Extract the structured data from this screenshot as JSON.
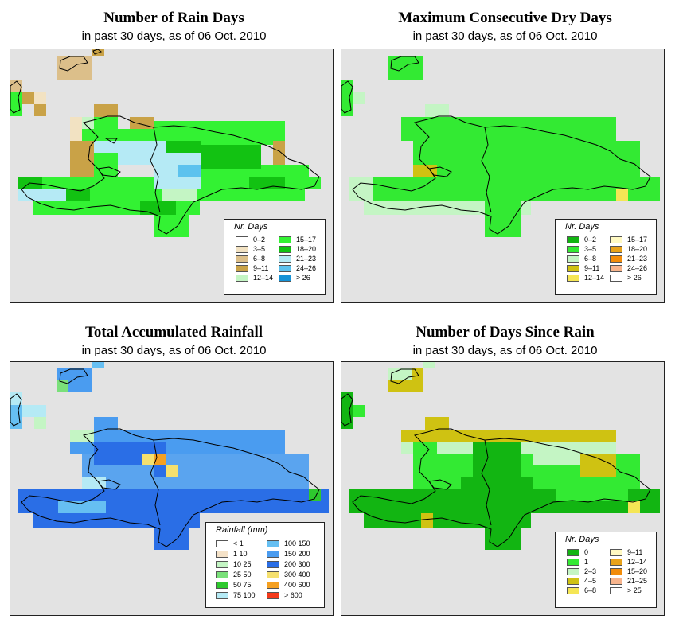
{
  "panels": [
    {
      "title": "Number of Rain Days",
      "subtitle": "in past 30 days, as of  06 Oct. 2010",
      "legend": {
        "title": "Nr. Days",
        "items": [
          {
            "label": "0–2",
            "color": "#ffffff"
          },
          {
            "label": "3–5",
            "color": "#f2e2c2"
          },
          {
            "label": "6–8",
            "color": "#dcbf8a"
          },
          {
            "label": "9–11",
            "color": "#c9a247"
          },
          {
            "label": "12–14",
            "color": "#c4f5c4"
          },
          {
            "label": "15–17",
            "color": "#33f233"
          },
          {
            "label": "18–20",
            "color": "#12c212"
          },
          {
            "label": "21–23",
            "color": "#b5eaf5"
          },
          {
            "label": "24–26",
            "color": "#5cc2ee"
          },
          {
            "label": "> 26",
            "color": "#1592d6"
          }
        ]
      }
    },
    {
      "title": "Maximum Consecutive Dry Days",
      "subtitle": "in past 30 days, as of  06 Oct. 2010",
      "legend": {
        "title": "Nr. Days",
        "items": [
          {
            "label": "0–2",
            "color": "#12b512"
          },
          {
            "label": "3–5",
            "color": "#33ea33"
          },
          {
            "label": "6–8",
            "color": "#c4f5c4"
          },
          {
            "label": "9–11",
            "color": "#cfc212"
          },
          {
            "label": "12–14",
            "color": "#f5e655"
          },
          {
            "label": "15–17",
            "color": "#fff9c2"
          },
          {
            "label": "18–20",
            "color": "#e8a21a"
          },
          {
            "label": "21–23",
            "color": "#f28c0a"
          },
          {
            "label": "24–26",
            "color": "#f7b48c"
          },
          {
            "label": "> 26",
            "color": "#ffffff"
          }
        ]
      }
    },
    {
      "title": "Total Accumulated Rainfall",
      "subtitle": "in past 30 days, as of  06 Oct. 2010",
      "legend": {
        "title": "Rainfall (mm)",
        "items": [
          {
            "label": "< 1",
            "color": "#ffffff"
          },
          {
            "label": "1    10",
            "color": "#f5e2c8"
          },
          {
            "label": "10    25",
            "color": "#c4f5c4"
          },
          {
            "label": "25    50",
            "color": "#7ae07a"
          },
          {
            "label": "50    75",
            "color": "#2ec92e"
          },
          {
            "label": "75    100",
            "color": "#b5eaf5"
          },
          {
            "label": "100    150",
            "color": "#66bff2"
          },
          {
            "label": "150    200",
            "color": "#4a9cf0"
          },
          {
            "label": "200    300",
            "color": "#2a6ee6"
          },
          {
            "label": "300    400",
            "color": "#f5e06e"
          },
          {
            "label": "400    600",
            "color": "#f5a020"
          },
          {
            "label": "> 600",
            "color": "#f53a1a"
          }
        ]
      }
    },
    {
      "title": "Number of Days Since Rain",
      "subtitle": "in past 30 days, as of  06 Oct. 2010",
      "legend": {
        "title": "Nr. Days",
        "items": [
          {
            "label": "0",
            "color": "#12b512"
          },
          {
            "label": "1",
            "color": "#33ea33"
          },
          {
            "label": "2–3",
            "color": "#c4f5c4"
          },
          {
            "label": "4–5",
            "color": "#cfc212"
          },
          {
            "label": "6–8",
            "color": "#f5e655"
          },
          {
            "label": "9–11",
            "color": "#fff9c2"
          },
          {
            "label": "12–14",
            "color": "#e8a21a"
          },
          {
            "label": "15–20",
            "color": "#f28c0a"
          },
          {
            "label": "21–25",
            "color": "#f7b48c"
          },
          {
            "label": "> 25",
            "color": "#ffffff"
          }
        ]
      }
    }
  ]
}
